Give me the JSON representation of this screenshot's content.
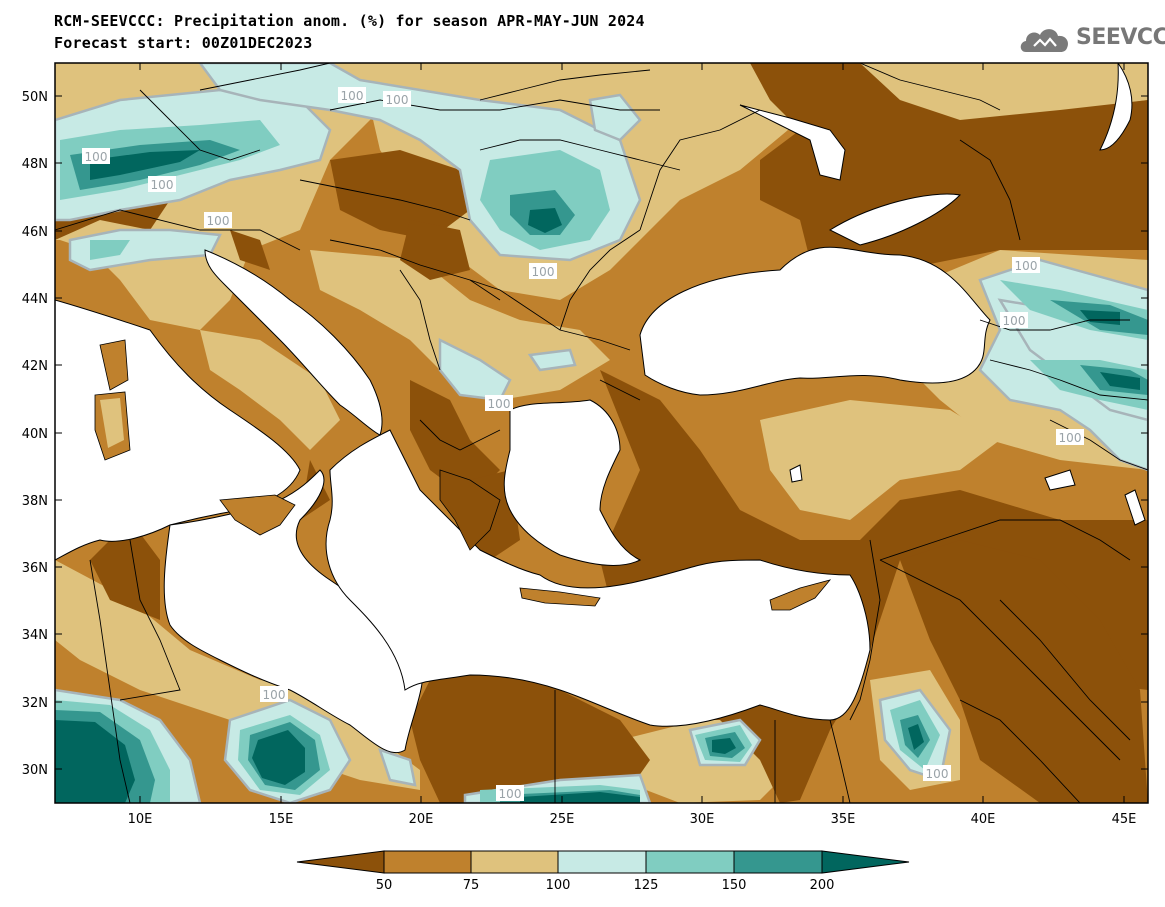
{
  "title": {
    "line1": "RCM-SEEVCCC: Precipitation anom. (%) for season APR-MAY-JUN 2024",
    "line2": "Forecast start: 00Z01DEC2023"
  },
  "logo": {
    "text": "SEEVCCC",
    "icon": "cloud-logo-icon"
  },
  "map": {
    "lat_labels": [
      "50N",
      "48N",
      "46N",
      "44N",
      "42N",
      "40N",
      "38N",
      "36N",
      "34N",
      "32N",
      "30N"
    ],
    "lon_labels": [
      "10E",
      "15E",
      "20E",
      "25E",
      "30E",
      "35E",
      "40E",
      "45E"
    ],
    "contour_label": "100"
  },
  "colorbar": {
    "labels": [
      "50",
      "75",
      "100",
      "125",
      "150",
      "200"
    ],
    "colors": [
      "#8c510a",
      "#bf812d",
      "#dfc27d",
      "#c7eae5",
      "#80cdc1",
      "#35978f",
      "#01665e"
    ]
  }
}
